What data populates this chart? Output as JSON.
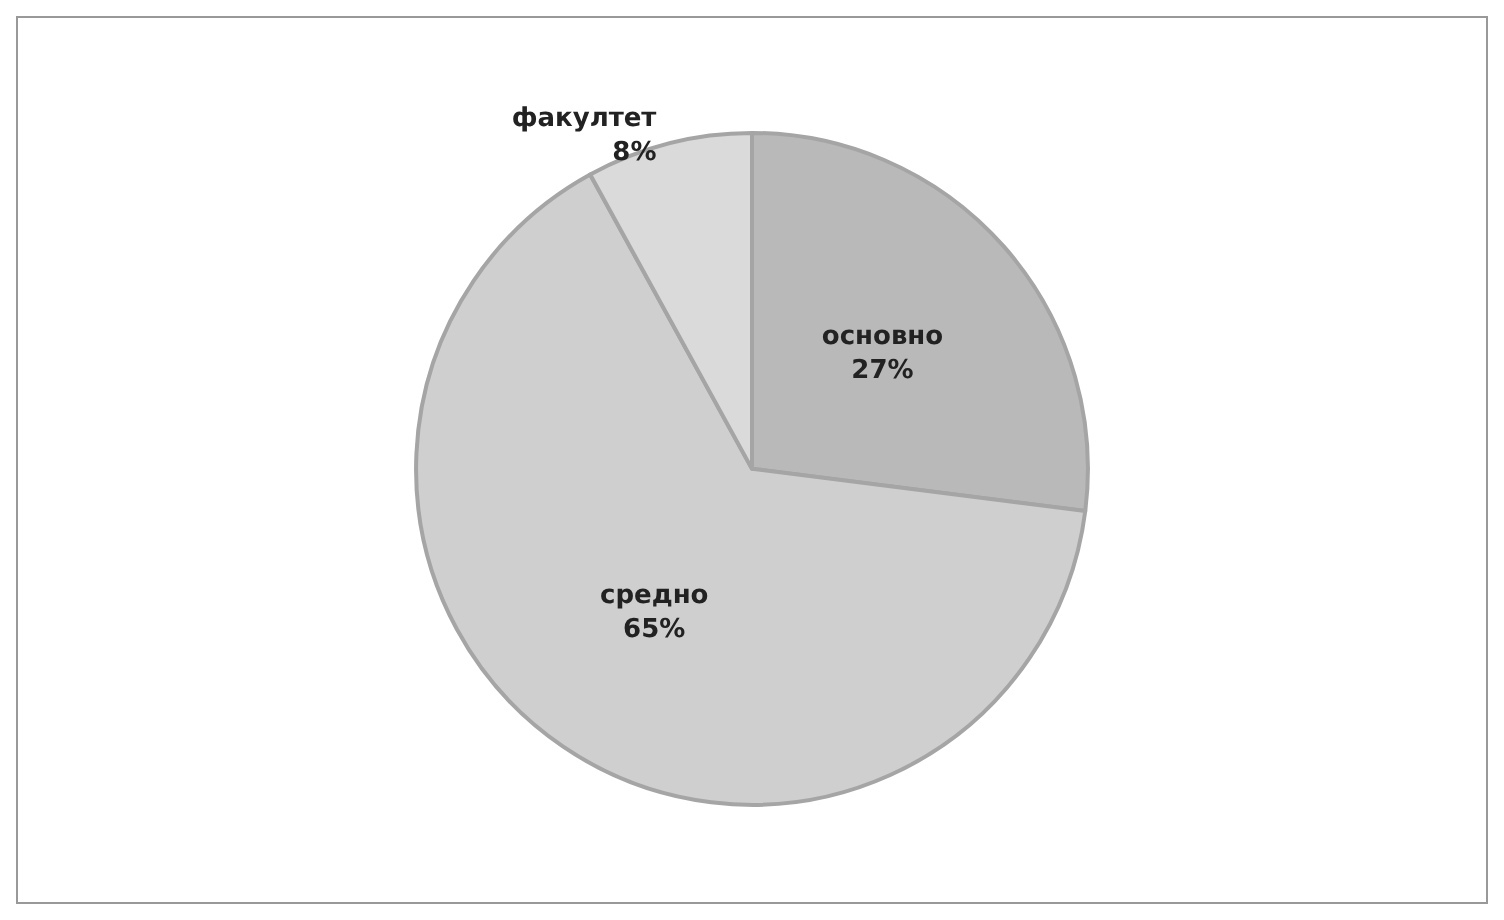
{
  "chart_data": {
    "type": "pie",
    "categories": [
      "основно",
      "средно",
      "факултет"
    ],
    "values": [
      27,
      65,
      8
    ],
    "colors": [
      "#b9b9b9",
      "#cfcfcf",
      "#dadada"
    ],
    "value_labels": [
      "27%",
      "65%",
      "8%"
    ],
    "legend": false
  }
}
